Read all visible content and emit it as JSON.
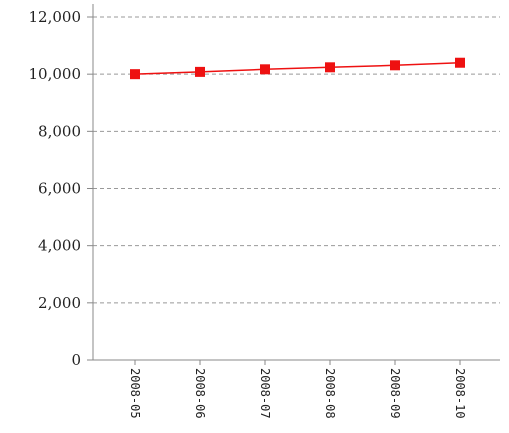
{
  "chart_data": {
    "type": "line",
    "title": "",
    "xlabel": "",
    "ylabel": "",
    "categories": [
      "2008-05",
      "2008-06",
      "2008-07",
      "2008-08",
      "2008-09",
      "2008-10"
    ],
    "series": [
      {
        "values": [
          10000,
          10080,
          10170,
          10240,
          10310,
          10400
        ]
      }
    ],
    "ylim": [
      0,
      12000
    ],
    "y_ticks": [
      "0",
      "2,000",
      "4,000",
      "6,000",
      "8,000",
      "10,000",
      "12,000"
    ],
    "grid": "horizontal dashed",
    "legend": "none",
    "colors": {
      "series": "#ee1111",
      "axis": "#888888",
      "grid": "#999999"
    }
  }
}
